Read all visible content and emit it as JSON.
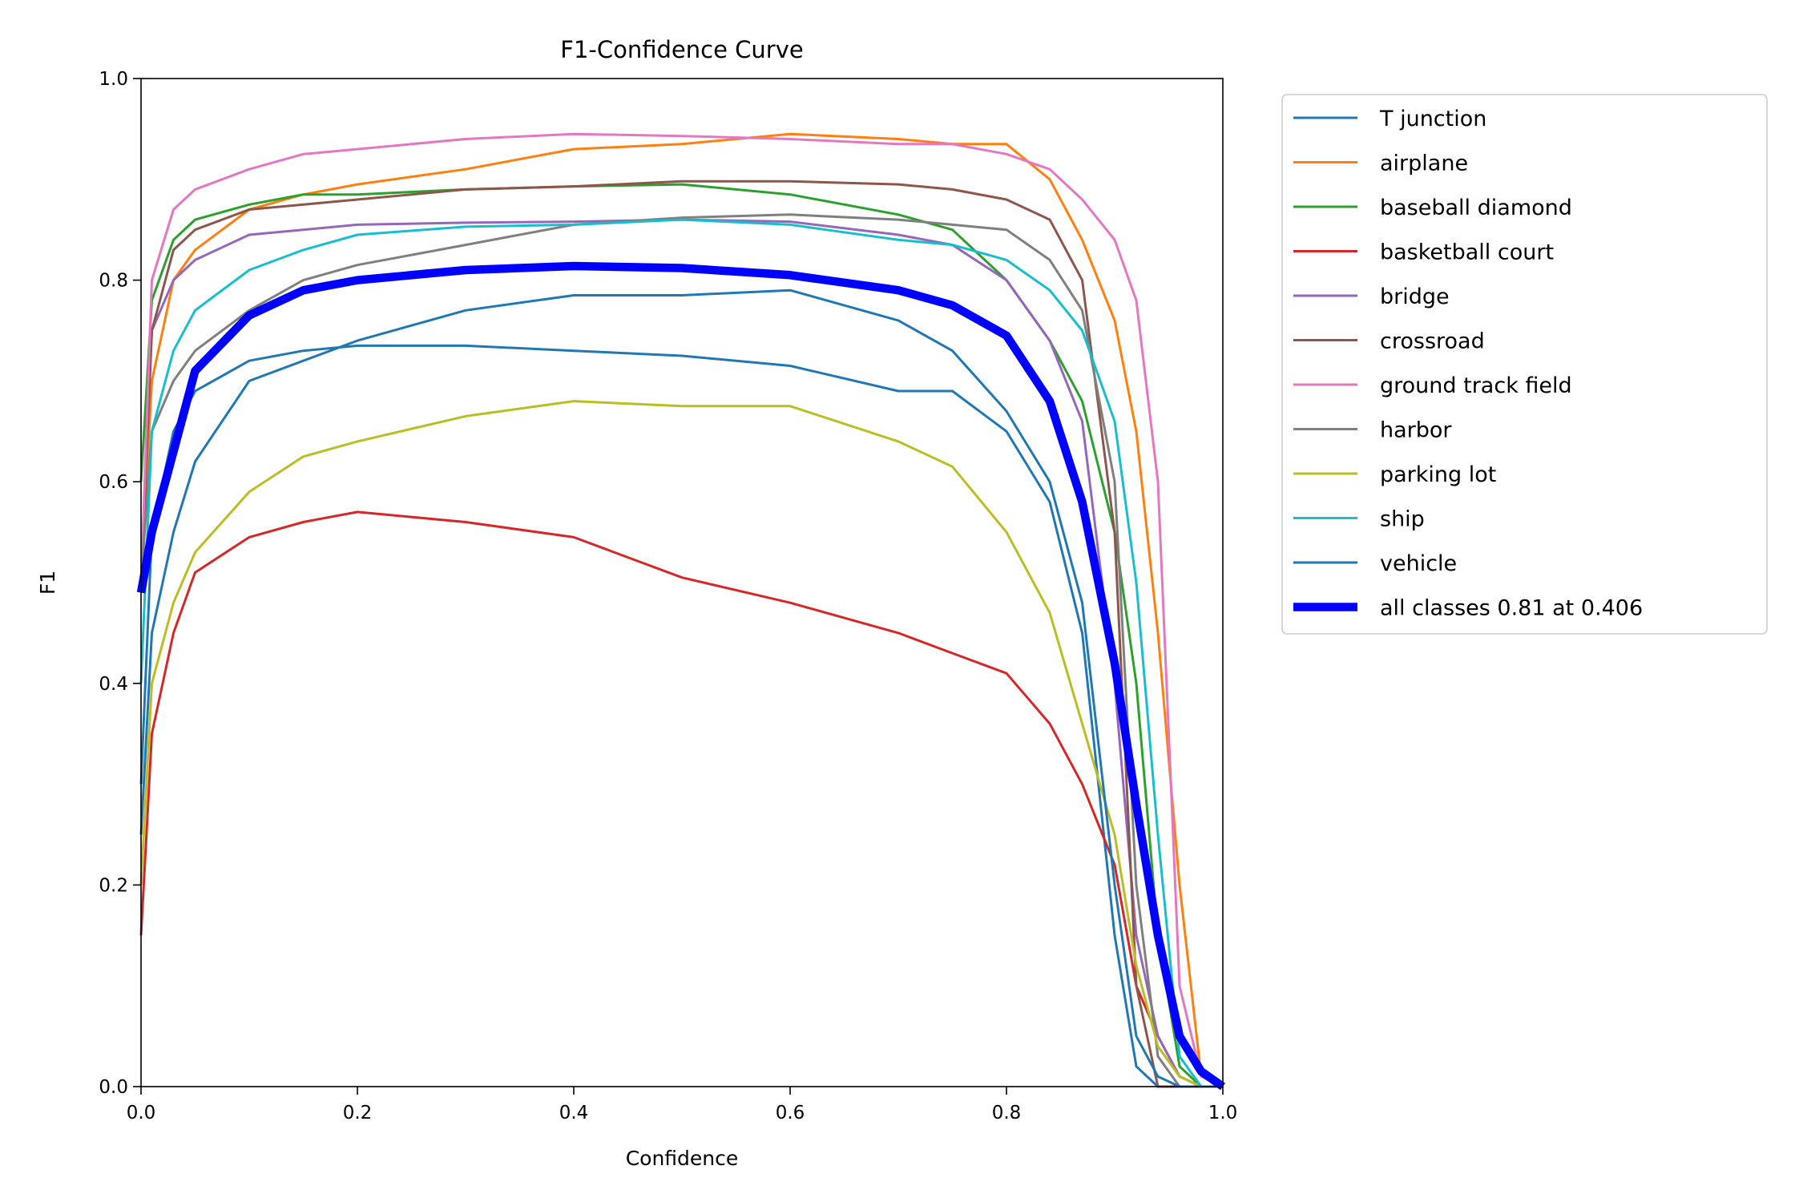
{
  "chart_data": {
    "type": "line",
    "title": "F1-Confidence Curve",
    "xlabel": "Confidence",
    "ylabel": "F1",
    "xlim": [
      0,
      1
    ],
    "ylim": [
      0,
      1
    ],
    "xticks": [
      "0.0",
      "0.2",
      "0.4",
      "0.6",
      "0.8",
      "1.0"
    ],
    "yticks": [
      "0.0",
      "0.2",
      "0.4",
      "0.6",
      "0.8",
      "1.0"
    ],
    "grid": false,
    "legend_placement": "outside-right-top",
    "x": [
      0,
      0.01,
      0.03,
      0.05,
      0.1,
      0.15,
      0.2,
      0.3,
      0.4,
      0.5,
      0.6,
      0.7,
      0.75,
      0.8,
      0.84,
      0.87,
      0.9,
      0.92,
      0.94,
      0.96,
      0.98,
      1.0
    ],
    "series": [
      {
        "name": "T junction",
        "color": "#1f77b4",
        "width": 2,
        "values": [
          0.3,
          0.55,
          0.65,
          0.69,
          0.72,
          0.73,
          0.735,
          0.735,
          0.73,
          0.725,
          0.715,
          0.69,
          0.69,
          0.65,
          0.58,
          0.45,
          0.15,
          0.02,
          0,
          0,
          0,
          0
        ]
      },
      {
        "name": "airplane",
        "color": "#ff7f0e",
        "width": 2,
        "values": [
          0.5,
          0.7,
          0.8,
          0.83,
          0.87,
          0.885,
          0.895,
          0.91,
          0.93,
          0.935,
          0.945,
          0.94,
          0.935,
          0.935,
          0.9,
          0.84,
          0.76,
          0.65,
          0.45,
          0.2,
          0.01,
          0
        ]
      },
      {
        "name": "baseball diamond",
        "color": "#2ca02c",
        "width": 2,
        "values": [
          0.6,
          0.78,
          0.84,
          0.86,
          0.875,
          0.885,
          0.885,
          0.89,
          0.893,
          0.895,
          0.885,
          0.865,
          0.85,
          0.8,
          0.74,
          0.68,
          0.55,
          0.4,
          0.15,
          0.02,
          0,
          0
        ]
      },
      {
        "name": "basketball court",
        "color": "#d62728",
        "width": 2,
        "values": [
          0.15,
          0.35,
          0.45,
          0.51,
          0.545,
          0.56,
          0.57,
          0.56,
          0.545,
          0.505,
          0.48,
          0.45,
          0.43,
          0.41,
          0.36,
          0.3,
          0.22,
          0.1,
          0.05,
          0.01,
          0,
          0
        ]
      },
      {
        "name": "bridge",
        "color": "#9467bd",
        "width": 2,
        "values": [
          0.5,
          0.75,
          0.8,
          0.82,
          0.845,
          0.85,
          0.855,
          0.857,
          0.858,
          0.86,
          0.858,
          0.845,
          0.835,
          0.8,
          0.74,
          0.66,
          0.4,
          0.15,
          0.05,
          0.01,
          0,
          0
        ]
      },
      {
        "name": "crossroad",
        "color": "#8c564b",
        "width": 2,
        "values": [
          0.5,
          0.75,
          0.83,
          0.85,
          0.87,
          0.875,
          0.88,
          0.89,
          0.893,
          0.898,
          0.898,
          0.895,
          0.89,
          0.88,
          0.86,
          0.8,
          0.55,
          0.1,
          0,
          0,
          0,
          0
        ]
      },
      {
        "name": "ground track field",
        "color": "#e377c2",
        "width": 2,
        "values": [
          0.5,
          0.8,
          0.87,
          0.89,
          0.91,
          0.925,
          0.93,
          0.94,
          0.945,
          0.943,
          0.94,
          0.935,
          0.935,
          0.925,
          0.91,
          0.88,
          0.84,
          0.78,
          0.6,
          0.1,
          0.01,
          0
        ]
      },
      {
        "name": "harbor",
        "color": "#7f7f7f",
        "width": 2,
        "values": [
          0.5,
          0.65,
          0.7,
          0.73,
          0.77,
          0.8,
          0.815,
          0.835,
          0.855,
          0.862,
          0.865,
          0.86,
          0.855,
          0.85,
          0.82,
          0.77,
          0.6,
          0.2,
          0.03,
          0,
          0,
          0
        ]
      },
      {
        "name": "parking lot",
        "color": "#bcbd22",
        "width": 2,
        "values": [
          0.2,
          0.4,
          0.48,
          0.53,
          0.59,
          0.625,
          0.64,
          0.665,
          0.68,
          0.675,
          0.675,
          0.64,
          0.615,
          0.55,
          0.47,
          0.36,
          0.25,
          0.12,
          0.04,
          0.01,
          0,
          0
        ]
      },
      {
        "name": "ship",
        "color": "#17becf",
        "width": 2,
        "values": [
          0.4,
          0.65,
          0.73,
          0.77,
          0.81,
          0.83,
          0.845,
          0.853,
          0.855,
          0.86,
          0.855,
          0.84,
          0.835,
          0.82,
          0.79,
          0.75,
          0.66,
          0.5,
          0.25,
          0.03,
          0,
          0
        ]
      },
      {
        "name": "vehicle",
        "color": "#1f77b4",
        "width": 2,
        "values": [
          0.25,
          0.45,
          0.55,
          0.62,
          0.7,
          0.72,
          0.74,
          0.77,
          0.785,
          0.785,
          0.79,
          0.76,
          0.73,
          0.67,
          0.6,
          0.48,
          0.2,
          0.05,
          0.01,
          0,
          0,
          0
        ]
      },
      {
        "name": "all classes 0.81 at 0.406",
        "color": "#0000ff",
        "width": 7,
        "values": [
          0.49,
          0.55,
          0.63,
          0.71,
          0.765,
          0.79,
          0.8,
          0.81,
          0.814,
          0.812,
          0.805,
          0.79,
          0.775,
          0.745,
          0.68,
          0.58,
          0.42,
          0.28,
          0.15,
          0.05,
          0.015,
          0
        ]
      }
    ]
  }
}
